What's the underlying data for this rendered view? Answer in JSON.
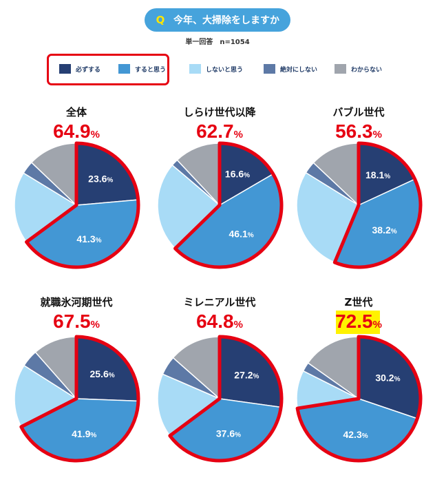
{
  "header": {
    "q_badge": "Q",
    "question": "今年、大掃除をしますか",
    "subtitle": "単一回答　n=1054"
  },
  "legend": [
    {
      "label": "必ずする",
      "color": "#263f73"
    },
    {
      "label": "すると思う",
      "color": "#4397d4"
    },
    {
      "label": "しないと思う",
      "color": "#a8dbf6"
    },
    {
      "label": "絶対にしない",
      "color": "#5d79a6"
    },
    {
      "label": "わからない",
      "color": "#a0a5ad"
    }
  ],
  "chart_data": [
    {
      "type": "pie",
      "title": "全体",
      "total": "64.9",
      "total_unit": "%",
      "categories": [
        "必ずする",
        "すると思う",
        "しないと思う",
        "絶対にしない",
        "わからない"
      ],
      "values": [
        23.6,
        41.3,
        18.8,
        3.4,
        12.9
      ],
      "labels": [
        "23.6",
        "41.3"
      ],
      "highlight_title": false
    },
    {
      "type": "pie",
      "title": "しらけ世代以降",
      "total": "62.7",
      "total_unit": "%",
      "categories": [
        "必ずする",
        "すると思う",
        "しないと思う",
        "絶対にしない",
        "わからない"
      ],
      "values": [
        16.6,
        46.1,
        23.5,
        1.8,
        12.0
      ],
      "labels": [
        "16.6",
        "46.1"
      ],
      "highlight_title": false
    },
    {
      "type": "pie",
      "title": "バブル世代",
      "total": "56.3",
      "total_unit": "%",
      "categories": [
        "必ずする",
        "すると思う",
        "しないと思う",
        "絶対にしない",
        "わからない"
      ],
      "values": [
        18.1,
        38.2,
        27.5,
        3.2,
        13.0
      ],
      "labels": [
        "18.1",
        "38.2"
      ],
      "highlight_title": false
    },
    {
      "type": "pie",
      "title": "就職氷河期世代",
      "total": "67.5",
      "total_unit": "%",
      "categories": [
        "必ずする",
        "すると思う",
        "しないと思う",
        "絶対にしない",
        "わからない"
      ],
      "values": [
        25.6,
        41.9,
        16.5,
        4.5,
        11.5
      ],
      "labels": [
        "25.6",
        "41.9"
      ],
      "highlight_title": false
    },
    {
      "type": "pie",
      "title": "ミレニアル世代",
      "total": "64.8",
      "total_unit": "%",
      "categories": [
        "必ずする",
        "すると思う",
        "しないと思う",
        "絶対にしない",
        "わからない"
      ],
      "values": [
        27.2,
        37.6,
        16.7,
        5.0,
        13.5
      ],
      "labels": [
        "27.2",
        "37.6"
      ],
      "highlight_title": false
    },
    {
      "type": "pie",
      "title": "Z世代",
      "total": "72.5",
      "total_unit": "%",
      "categories": [
        "必ずする",
        "すると思う",
        "しないと思う",
        "絶対にしない",
        "わからない"
      ],
      "values": [
        30.2,
        42.3,
        9.9,
        2.4,
        15.2
      ],
      "labels": [
        "30.2",
        "42.3"
      ],
      "highlight_title": true
    }
  ]
}
